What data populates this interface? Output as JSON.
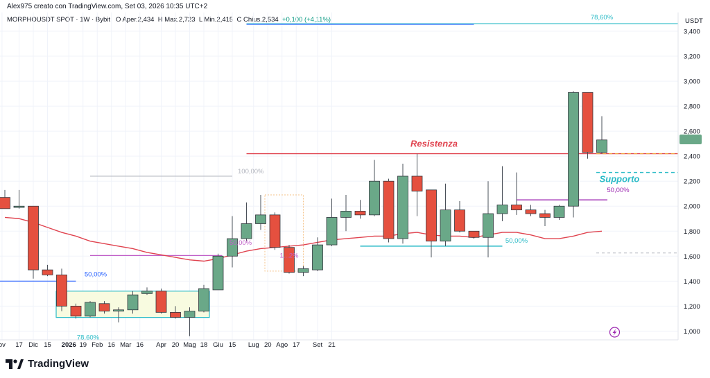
{
  "header": {
    "created_by": "Alex975 creato con TradingView.com, Set 03, 2026 10:35 UTC+2"
  },
  "symbol": {
    "name": "MORPHOUSDT SPOT · 1W · Bybit",
    "o_label": "O",
    "o_value": "Aper.2,434",
    "h_label": "H",
    "h_value": "Max.2,723",
    "l_label": "L",
    "l_value": "Min.2,415",
    "c_label": "C",
    "c_value": "Chius.2,534",
    "change": "+0,100 (+4,11%)"
  },
  "brand": {
    "name": "TradingView"
  },
  "colors": {
    "up": "#6aa888",
    "down": "#e5503f",
    "ma": "#e0434f",
    "resistance": "#e0434f",
    "support": "#2bbbc7",
    "fib": "#c160c8",
    "axis_text": "#131722"
  },
  "icons": {
    "flash": "lightning-icon"
  },
  "chart_data": {
    "type": "candlestick",
    "timeframe": "1W",
    "currency": "USDT",
    "ylim": [
      0.93,
      3.55
    ],
    "y_ticks": [
      "1,000",
      "1,200",
      "1,400",
      "1,600",
      "1,800",
      "2,000",
      "2,200",
      "2,400",
      "2,600",
      "2,800",
      "3,000",
      "3,200",
      "3,400"
    ],
    "x_ticks": [
      {
        "label": "ov",
        "i": -0.2
      },
      {
        "label": "17",
        "i": 1
      },
      {
        "label": "Dic",
        "i": 2
      },
      {
        "label": "15",
        "i": 3
      },
      {
        "label": "2026",
        "i": 4.5,
        "bold": true
      },
      {
        "label": "19",
        "i": 5.5
      },
      {
        "label": "Feb",
        "i": 6.5
      },
      {
        "label": "16",
        "i": 7.5
      },
      {
        "label": "Mar",
        "i": 8.5
      },
      {
        "label": "16",
        "i": 9.5
      },
      {
        "label": "Apr",
        "i": 11
      },
      {
        "label": "20",
        "i": 12
      },
      {
        "label": "Mag",
        "i": 13
      },
      {
        "label": "18",
        "i": 14
      },
      {
        "label": "Giu",
        "i": 15
      },
      {
        "label": "15",
        "i": 16
      },
      {
        "label": "Lug",
        "i": 17.5
      },
      {
        "label": "20",
        "i": 18.5
      },
      {
        "label": "Ago",
        "i": 19.5
      },
      {
        "label": "17",
        "i": 20.5
      },
      {
        "label": "Set",
        "i": 22
      },
      {
        "label": "21",
        "i": 23
      }
    ],
    "candles": [
      {
        "o": 2.07,
        "h": 2.13,
        "l": 2.0,
        "c": 1.98
      },
      {
        "o": 1.99,
        "h": 2.13,
        "l": 1.98,
        "c": 2.0
      },
      {
        "o": 2.0,
        "h": 2.0,
        "l": 1.42,
        "c": 1.49
      },
      {
        "o": 1.49,
        "h": 1.53,
        "l": 1.44,
        "c": 1.45
      },
      {
        "o": 1.45,
        "h": 1.5,
        "l": 1.16,
        "c": 1.2
      },
      {
        "o": 1.2,
        "h": 1.22,
        "l": 1.1,
        "c": 1.12
      },
      {
        "o": 1.12,
        "h": 1.24,
        "l": 1.11,
        "c": 1.23
      },
      {
        "o": 1.22,
        "h": 1.24,
        "l": 1.14,
        "c": 1.16
      },
      {
        "o": 1.16,
        "h": 1.19,
        "l": 1.07,
        "c": 1.17
      },
      {
        "o": 1.17,
        "h": 1.32,
        "l": 1.14,
        "c": 1.29
      },
      {
        "o": 1.3,
        "h": 1.35,
        "l": 1.29,
        "c": 1.32
      },
      {
        "o": 1.32,
        "h": 1.34,
        "l": 1.14,
        "c": 1.15
      },
      {
        "o": 1.15,
        "h": 1.2,
        "l": 1.1,
        "c": 1.11
      },
      {
        "o": 1.11,
        "h": 1.19,
        "l": 0.96,
        "c": 1.16
      },
      {
        "o": 1.16,
        "h": 1.37,
        "l": 1.15,
        "c": 1.34
      },
      {
        "o": 1.33,
        "h": 1.62,
        "l": 1.33,
        "c": 1.6
      },
      {
        "o": 1.6,
        "h": 1.92,
        "l": 1.51,
        "c": 1.74
      },
      {
        "o": 1.74,
        "h": 2.03,
        "l": 1.72,
        "c": 1.86
      },
      {
        "o": 1.86,
        "h": 2.09,
        "l": 1.81,
        "c": 1.93
      },
      {
        "o": 1.93,
        "h": 1.95,
        "l": 1.65,
        "c": 1.67
      },
      {
        "o": 1.67,
        "h": 1.69,
        "l": 1.46,
        "c": 1.47
      },
      {
        "o": 1.47,
        "h": 1.52,
        "l": 1.44,
        "c": 1.5
      },
      {
        "o": 1.49,
        "h": 1.75,
        "l": 1.48,
        "c": 1.69
      },
      {
        "o": 1.69,
        "h": 2.06,
        "l": 1.68,
        "c": 1.91
      },
      {
        "o": 1.91,
        "h": 2.09,
        "l": 1.8,
        "c": 1.96
      },
      {
        "o": 1.96,
        "h": 2.05,
        "l": 1.9,
        "c": 1.93
      },
      {
        "o": 1.93,
        "h": 2.37,
        "l": 1.92,
        "c": 2.2
      },
      {
        "o": 2.2,
        "h": 2.22,
        "l": 1.71,
        "c": 1.74
      },
      {
        "o": 1.74,
        "h": 2.34,
        "l": 1.7,
        "c": 2.24
      },
      {
        "o": 2.24,
        "h": 2.42,
        "l": 1.92,
        "c": 2.12
      },
      {
        "o": 2.13,
        "h": 2.13,
        "l": 1.59,
        "c": 1.72
      },
      {
        "o": 1.72,
        "h": 2.18,
        "l": 1.68,
        "c": 1.97
      },
      {
        "o": 1.97,
        "h": 2.04,
        "l": 1.79,
        "c": 1.8
      },
      {
        "o": 1.8,
        "h": 1.8,
        "l": 1.74,
        "c": 1.75
      },
      {
        "o": 1.75,
        "h": 2.2,
        "l": 1.59,
        "c": 1.94
      },
      {
        "o": 1.94,
        "h": 2.32,
        "l": 1.88,
        "c": 2.01
      },
      {
        "o": 2.01,
        "h": 2.27,
        "l": 1.93,
        "c": 1.97
      },
      {
        "o": 1.97,
        "h": 2.01,
        "l": 1.92,
        "c": 1.94
      },
      {
        "o": 1.94,
        "h": 1.97,
        "l": 1.84,
        "c": 1.91
      },
      {
        "o": 1.91,
        "h": 2.01,
        "l": 1.89,
        "c": 2.0
      },
      {
        "o": 2.0,
        "h": 2.92,
        "l": 1.91,
        "c": 2.91
      },
      {
        "o": 2.91,
        "h": 2.91,
        "l": 2.38,
        "c": 2.43
      },
      {
        "o": 2.43,
        "h": 2.72,
        "l": 2.42,
        "c": 2.53
      }
    ],
    "moving_average": [
      1.91,
      1.9,
      1.87,
      1.83,
      1.79,
      1.76,
      1.72,
      1.7,
      1.68,
      1.66,
      1.63,
      1.61,
      1.59,
      1.57,
      1.56,
      1.58,
      1.61,
      1.64,
      1.66,
      1.67,
      1.68,
      1.69,
      1.71,
      1.73,
      1.74,
      1.75,
      1.76,
      1.76,
      1.78,
      1.79,
      1.77,
      1.76,
      1.76,
      1.75,
      1.77,
      1.79,
      1.79,
      1.77,
      1.74,
      1.74,
      1.76,
      1.79,
      1.8
    ],
    "annotations": {
      "resistance_label": "Resistenza",
      "support_label": "Supporto",
      "fib_top": "78,60%",
      "fib_bottom": "78,60%",
      "fib_left": "50,00%",
      "fib_100": "100,00%",
      "fib_mid": "50,00%",
      "fib_mid2": "1...2%",
      "fib_right": "50,00%",
      "fib_cyan_mid": "50,00%",
      "price_label": "2,534"
    }
  }
}
